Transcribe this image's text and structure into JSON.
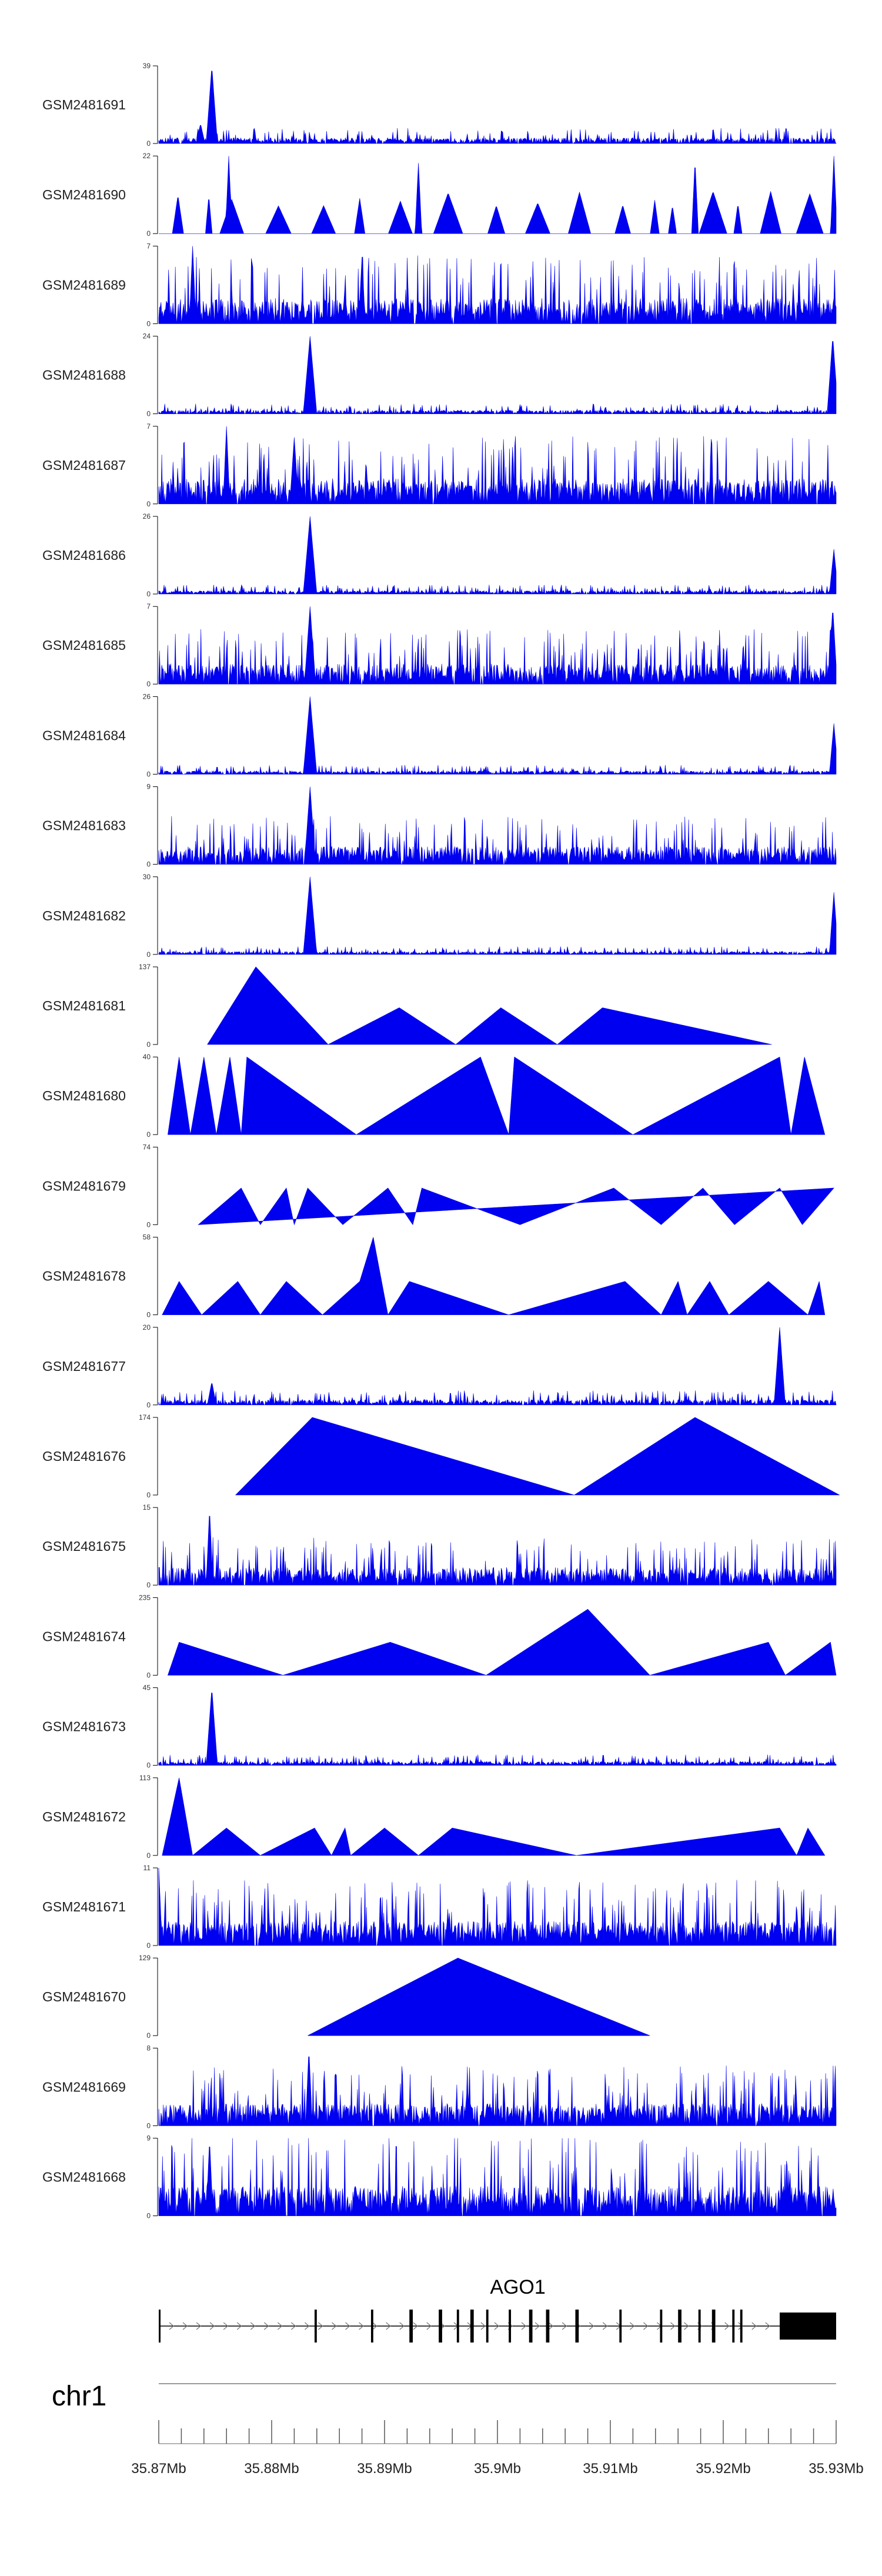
{
  "chart_data": {
    "type": "area",
    "title": "",
    "xlabel": "",
    "ylabel": "",
    "xlim": [
      35.87,
      35.93
    ],
    "chromosome": "chr1",
    "gene": "AGO1",
    "x_ticks": [
      {
        "value": 35.87,
        "label": "35.87Mb"
      },
      {
        "value": 35.88,
        "label": "35.88Mb"
      },
      {
        "value": 35.89,
        "label": "35.89Mb"
      },
      {
        "value": 35.9,
        "label": "35.9Mb"
      },
      {
        "value": 35.91,
        "label": "35.91Mb"
      },
      {
        "value": 35.92,
        "label": "35.92Mb"
      },
      {
        "value": 35.93,
        "label": "35.93Mb"
      }
    ],
    "gene_model": {
      "start": 35.87,
      "end": 35.93,
      "exons": [
        [
          35.87,
          35.8701
        ],
        [
          35.8838,
          35.884
        ],
        [
          35.8888,
          35.889
        ],
        [
          35.8922,
          35.8925
        ],
        [
          35.8948,
          35.8951
        ],
        [
          35.8964,
          35.8966
        ],
        [
          35.8976,
          35.8979
        ],
        [
          35.899,
          35.8992
        ],
        [
          35.901,
          35.9012
        ],
        [
          35.9028,
          35.9031
        ],
        [
          35.9043,
          35.9046
        ],
        [
          35.9069,
          35.9072
        ],
        [
          35.9108,
          35.911
        ],
        [
          35.9144,
          35.9146
        ],
        [
          35.916,
          35.9163
        ],
        [
          35.9178,
          35.918
        ],
        [
          35.919,
          35.9193
        ],
        [
          35.9208,
          35.921
        ],
        [
          35.9215,
          35.9217
        ]
      ],
      "utr3": [
        35.925,
        35.93
      ]
    },
    "series": [
      {
        "name": "GSM2481691",
        "ymax": 39,
        "style": "noise",
        "base": 2.5,
        "spikes": [
          [
            35.8747,
            39,
            0.0005
          ],
          [
            35.8737,
            10,
            0.0004
          ]
        ]
      },
      {
        "name": "GSM2481690",
        "ymax": 22,
        "style": "sparse",
        "spikes": [
          [
            35.8762,
            22,
            0.0003
          ],
          [
            35.893,
            20,
            0.0003
          ],
          [
            35.9175,
            21,
            0.0003
          ],
          [
            35.9298,
            22,
            0.0003
          ]
        ]
      },
      {
        "name": "GSM2481689",
        "ymax": 7,
        "style": "noise",
        "base": 2.0,
        "spikes": [
          [
            35.873,
            7,
            0.0003
          ],
          [
            35.888,
            6,
            0.0003
          ]
        ]
      },
      {
        "name": "GSM2481688",
        "ymax": 24,
        "style": "noise",
        "base": 1.0,
        "spikes": [
          [
            35.8834,
            24,
            0.0006
          ],
          [
            35.9297,
            24,
            0.0005
          ]
        ]
      },
      {
        "name": "GSM2481687",
        "ymax": 7,
        "style": "noise",
        "base": 2.0,
        "spikes": [
          [
            35.876,
            7,
            0.0003
          ],
          [
            35.882,
            6,
            0.0004
          ]
        ]
      },
      {
        "name": "GSM2481686",
        "ymax": 26,
        "style": "noise",
        "base": 1.0,
        "spikes": [
          [
            35.8834,
            26,
            0.0006
          ],
          [
            35.9298,
            15,
            0.0004
          ]
        ]
      },
      {
        "name": "GSM2481685",
        "ymax": 7,
        "style": "noise",
        "base": 1.6,
        "spikes": [
          [
            35.8834,
            7,
            0.0005
          ],
          [
            35.9297,
            7,
            0.0004
          ]
        ]
      },
      {
        "name": "GSM2481684",
        "ymax": 26,
        "style": "noise",
        "base": 1.0,
        "spikes": [
          [
            35.8834,
            26,
            0.0006
          ],
          [
            35.9298,
            17,
            0.0004
          ]
        ]
      },
      {
        "name": "GSM2481683",
        "ymax": 9,
        "style": "noise",
        "base": 1.8,
        "spikes": [
          [
            35.8834,
            9,
            0.0005
          ]
        ]
      },
      {
        "name": "GSM2481682",
        "ymax": 30,
        "style": "noise",
        "base": 1.0,
        "spikes": [
          [
            35.8834,
            30,
            0.0006
          ],
          [
            35.9298,
            24,
            0.0004
          ]
        ]
      },
      {
        "name": "GSM2481681",
        "ymax": 137,
        "style": "tri",
        "points": [
          [
            35.8743,
            0
          ],
          [
            35.8786,
            137
          ],
          [
            35.885,
            0
          ],
          [
            35.8913,
            65
          ],
          [
            35.8963,
            0
          ],
          [
            35.9003,
            65
          ],
          [
            35.9053,
            0
          ],
          [
            35.9093,
            65
          ],
          [
            35.9243,
            0
          ]
        ]
      },
      {
        "name": "GSM2481680",
        "ymax": 40,
        "style": "tri",
        "points": [
          [
            35.8708,
            0
          ],
          [
            35.8718,
            40
          ],
          [
            35.8728,
            0
          ],
          [
            35.874,
            40
          ],
          [
            35.8751,
            0
          ],
          [
            35.8763,
            40
          ],
          [
            35.8773,
            0
          ],
          [
            35.8778,
            40
          ],
          [
            35.8875,
            0
          ],
          [
            35.8985,
            40
          ],
          [
            35.901,
            0
          ],
          [
            35.9015,
            40
          ],
          [
            35.912,
            0
          ],
          [
            35.925,
            40
          ],
          [
            35.926,
            0
          ],
          [
            35.9272,
            40
          ],
          [
            35.929,
            0
          ]
        ]
      },
      {
        "name": "GSM2481679",
        "ymax": 74,
        "style": "tri",
        "points": [
          [
            35.8735,
            0
          ],
          [
            35.8773,
            35
          ],
          [
            35.879,
            0
          ],
          [
            35.8813,
            35
          ],
          [
            35.882,
            0
          ],
          [
            35.8832,
            35
          ],
          [
            35.8863,
            0
          ],
          [
            35.8903,
            35
          ],
          [
            35.8925,
            0
          ],
          [
            35.8933,
            35
          ],
          [
            35.902,
            0
          ],
          [
            35.9103,
            35
          ],
          [
            35.9145,
            0
          ],
          [
            35.9182,
            35
          ],
          [
            35.921,
            0
          ],
          [
            35.925,
            35
          ],
          [
            35.927,
            0
          ],
          [
            35.9298,
            35
          ]
        ]
      },
      {
        "name": "GSM2481678",
        "ymax": 58,
        "style": "tri",
        "points": [
          [
            35.8703,
            0
          ],
          [
            35.8718,
            25
          ],
          [
            35.8738,
            0
          ],
          [
            35.877,
            25
          ],
          [
            35.879,
            0
          ],
          [
            35.8813,
            25
          ],
          [
            35.8845,
            0
          ],
          [
            35.8878,
            25
          ],
          [
            35.889,
            58
          ],
          [
            35.8903,
            0
          ],
          [
            35.8922,
            25
          ],
          [
            35.901,
            0
          ],
          [
            35.9113,
            25
          ],
          [
            35.9145,
            0
          ],
          [
            35.916,
            25
          ],
          [
            35.9168,
            0
          ],
          [
            35.9188,
            25
          ],
          [
            35.9205,
            0
          ],
          [
            35.924,
            25
          ],
          [
            35.9275,
            0
          ],
          [
            35.9285,
            25
          ],
          [
            35.929,
            0
          ]
        ]
      },
      {
        "name": "GSM2481677",
        "ymax": 20,
        "style": "noise",
        "base": 1.2,
        "spikes": [
          [
            35.925,
            20,
            0.0005
          ],
          [
            35.8747,
            6,
            0.0004
          ]
        ]
      },
      {
        "name": "GSM2481676",
        "ymax": 174,
        "style": "tri",
        "points": [
          [
            35.8768,
            0
          ],
          [
            35.8836,
            174
          ],
          [
            35.9068,
            0
          ],
          [
            35.9175,
            174
          ],
          [
            35.9303,
            0
          ]
        ]
      },
      {
        "name": "GSM2481675",
        "ymax": 15,
        "style": "noise",
        "base": 3.0,
        "spikes": [
          [
            35.8745,
            15,
            0.0003
          ]
        ]
      },
      {
        "name": "GSM2481674",
        "ymax": 235,
        "style": "tri",
        "points": [
          [
            35.8708,
            0
          ],
          [
            35.8718,
            100
          ],
          [
            35.881,
            0
          ],
          [
            35.8905,
            100
          ],
          [
            35.899,
            0
          ],
          [
            35.908,
            200
          ],
          [
            35.9135,
            0
          ],
          [
            35.924,
            100
          ],
          [
            35.9255,
            0
          ],
          [
            35.9295,
            100
          ],
          [
            35.93,
            0
          ]
        ]
      },
      {
        "name": "GSM2481673",
        "ymax": 45,
        "style": "noise",
        "base": 2.0,
        "spikes": [
          [
            35.8747,
            45,
            0.0005
          ]
        ]
      },
      {
        "name": "GSM2481672",
        "ymax": 113,
        "style": "tri",
        "points": [
          [
            35.8703,
            0
          ],
          [
            35.8718,
            113
          ],
          [
            35.873,
            0
          ],
          [
            35.876,
            40
          ],
          [
            35.879,
            0
          ],
          [
            35.8838,
            40
          ],
          [
            35.8853,
            0
          ],
          [
            35.8865,
            40
          ],
          [
            35.887,
            0
          ],
          [
            35.89,
            40
          ],
          [
            35.893,
            0
          ],
          [
            35.896,
            40
          ],
          [
            35.907,
            0
          ],
          [
            35.925,
            40
          ],
          [
            35.9265,
            0
          ],
          [
            35.9275,
            40
          ],
          [
            35.929,
            0
          ]
        ]
      },
      {
        "name": "GSM2481671",
        "ymax": 11,
        "style": "noise",
        "base": 3.0,
        "spikes": [
          [
            35.87,
            11,
            0.0003
          ]
        ]
      },
      {
        "name": "GSM2481670",
        "ymax": 129,
        "style": "tri",
        "points": [
          [
            35.8832,
            0
          ],
          [
            35.8965,
            129
          ],
          [
            35.9135,
            0
          ]
        ]
      },
      {
        "name": "GSM2481669",
        "ymax": 8,
        "style": "noise",
        "base": 2.0,
        "spikes": [
          [
            35.8833,
            8,
            0.0003
          ]
        ]
      },
      {
        "name": "GSM2481668",
        "ymax": 9,
        "style": "noise",
        "base": 3.0,
        "spikes": [
          [
            35.8745,
            9,
            0.0003
          ]
        ]
      }
    ]
  },
  "colors": {
    "signal": "#0000f0",
    "axis": "#000000",
    "gene": "#000000",
    "divider": "#9a9a9a"
  }
}
